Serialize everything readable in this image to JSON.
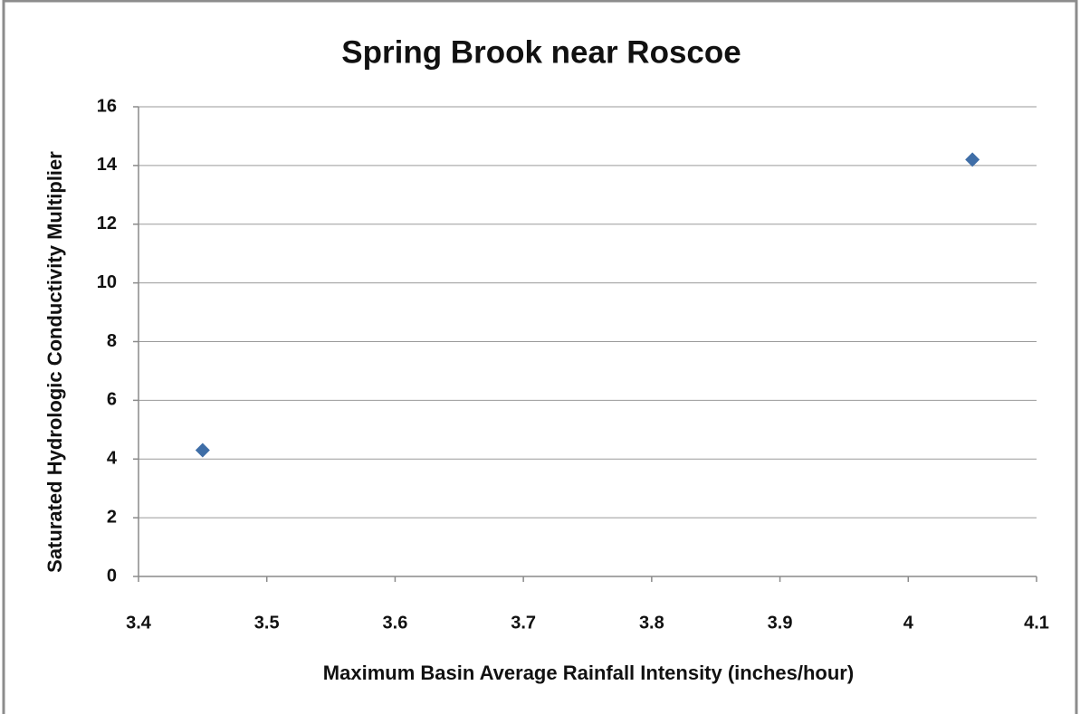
{
  "chart_data": {
    "type": "scatter",
    "title": "Spring Brook near Roscoe",
    "x_label": "Maximum Basin Average Rainfall Intensity (inches/hour)",
    "y_label": "Saturated Hydrologic Conductivity Multiplier",
    "x": [
      3.45,
      4.05
    ],
    "values": [
      4.3,
      14.2
    ],
    "color": "#3f6ea7",
    "xlim": [
      3.4,
      4.1
    ],
    "xticks": [
      3.4,
      3.5,
      3.6,
      3.7,
      3.8,
      3.9,
      4,
      4.1
    ],
    "ylim": [
      0,
      16
    ],
    "yticks": [
      0,
      2,
      4,
      6,
      8,
      10,
      12,
      14,
      16
    ],
    "grid": true
  }
}
